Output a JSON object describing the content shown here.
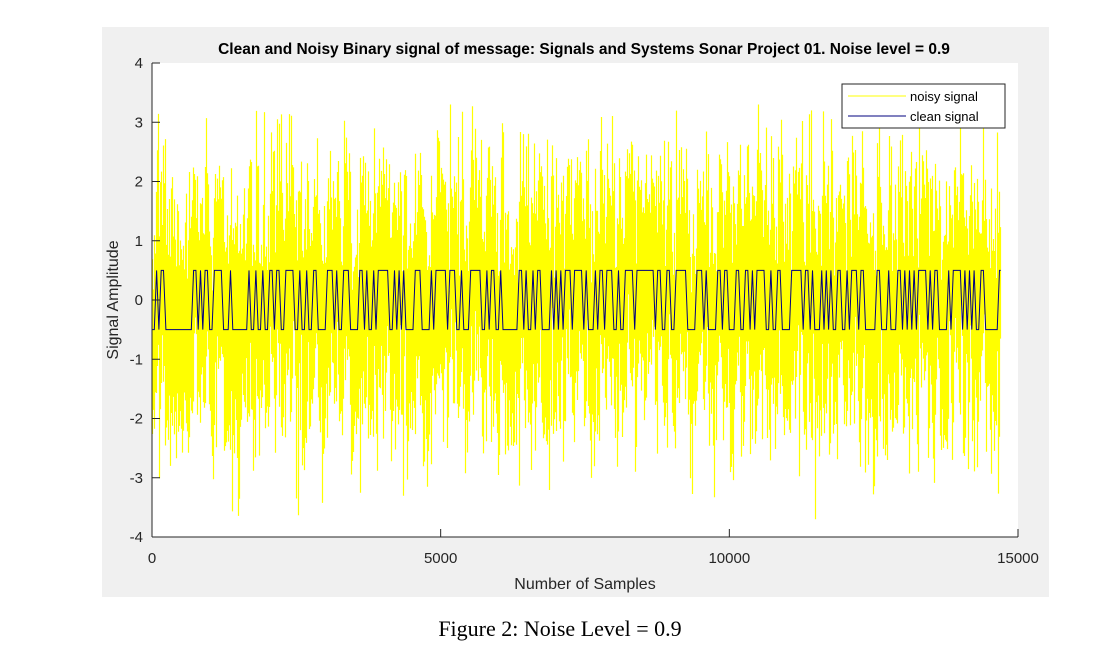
{
  "caption": "Figure 2: Noise Level = 0.9",
  "chart_data": {
    "type": "line",
    "title": "Clean and Noisy Binary signal of message: Signals and Systems Sonar Project 01. Noise level = 0.9",
    "xlabel": "Number of Samples",
    "ylabel": "Signal Amplitude",
    "xlim": [
      0,
      15000
    ],
    "ylim": [
      -4,
      4
    ],
    "xticks": [
      0,
      5000,
      10000,
      15000
    ],
    "yticks": [
      -4,
      -3,
      -2,
      -1,
      0,
      1,
      2,
      3,
      4
    ],
    "grid": false,
    "legend": {
      "placement": "top-right"
    },
    "n_samples": 14700,
    "series": [
      {
        "name": "noisy signal",
        "color": "#ffff00",
        "description_values": {
          "approx_range": [
            -3.7,
            3.3
          ],
          "typical_band": [
            -2.3,
            2.3
          ],
          "noise_level": 0.9
        }
      },
      {
        "name": "clean signal",
        "color": "#00007f",
        "levels": [
          -0.5,
          0.5
        ]
      }
    ]
  }
}
